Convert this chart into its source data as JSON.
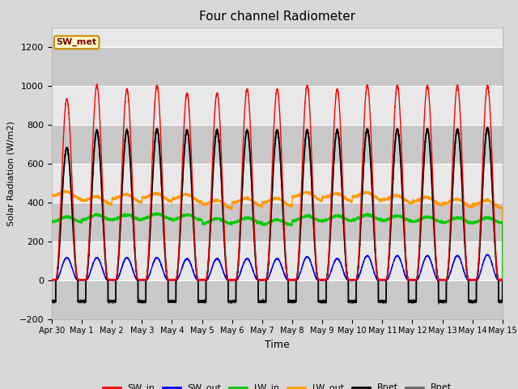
{
  "title": "Four channel Radiometer",
  "xlabel": "Time",
  "ylabel": "Solar Radiation (W/m2)",
  "ylim": [
    -200,
    1300
  ],
  "yticks": [
    -200,
    0,
    200,
    400,
    600,
    800,
    1000,
    1200
  ],
  "x_tick_labels": [
    "Apr 30",
    "May 1",
    "May 2",
    "May 3",
    "May 4",
    "May 5",
    "May 6",
    "May 7",
    "May 8",
    "May 9",
    "May 10",
    "May 11",
    "May 12",
    "May 13",
    "May 14",
    "May 15"
  ],
  "label_box_text": "SW_met",
  "label_box_facecolor": "#ffffcc",
  "label_box_edgecolor": "#cc8800",
  "label_box_textcolor": "#800000",
  "series": {
    "SW_in": {
      "color": "#ff0000",
      "lw": 1.0
    },
    "SW_out": {
      "color": "#0000ff",
      "lw": 1.0
    },
    "LW_in": {
      "color": "#00cc00",
      "lw": 1.0
    },
    "LW_out": {
      "color": "#ff9900",
      "lw": 1.0
    },
    "Rnet1": {
      "color": "#000000",
      "lw": 1.2
    },
    "Rnet2": {
      "color": "#666666",
      "lw": 1.2
    }
  },
  "fig_bg_color": "#d8d8d8",
  "plot_bg_color": "#e8e8e8",
  "stripe_color": "#c8c8c8",
  "grid_color": "#ffffff",
  "num_days": 15,
  "figsize": [
    6.4,
    4.8
  ],
  "dpi": 100
}
